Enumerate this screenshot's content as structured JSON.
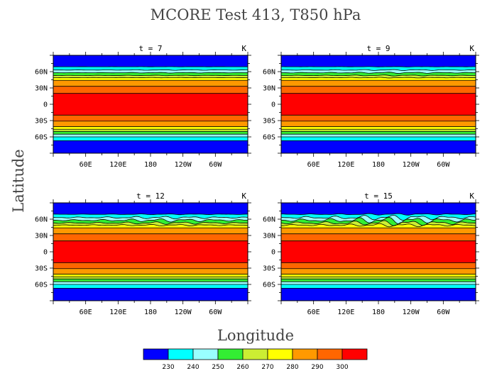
{
  "figure": {
    "title": "MCORE Test 413, T850 hPa",
    "xlabel": "Longitude",
    "ylabel": "Latitude"
  },
  "chart_data": [
    {
      "type": "heatmap",
      "title": "t = 7",
      "units": "K",
      "x_tick_labels": [
        "60E",
        "120E",
        "180",
        "120W",
        "60W"
      ],
      "y_tick_labels": [
        "60N",
        "30N",
        "0",
        "30S",
        "60S"
      ],
      "x_range": [
        0,
        360
      ],
      "y_range": [
        -90,
        90
      ],
      "waviness": 0.1
    },
    {
      "type": "heatmap",
      "title": "t = 9",
      "units": "K",
      "x_tick_labels": [
        "60E",
        "120E",
        "180",
        "120W",
        "60W"
      ],
      "y_tick_labels": [
        "60N",
        "30N",
        "0",
        "30S",
        "60S"
      ],
      "x_range": [
        0,
        360
      ],
      "y_range": [
        -90,
        90
      ],
      "waviness": 0.2
    },
    {
      "type": "heatmap",
      "title": "t = 12",
      "units": "K",
      "x_tick_labels": [
        "60E",
        "120E",
        "180",
        "120W",
        "60W"
      ],
      "y_tick_labels": [
        "60N",
        "30N",
        "0",
        "30S",
        "60S"
      ],
      "x_range": [
        0,
        360
      ],
      "y_range": [
        -90,
        90
      ],
      "waviness": 0.5
    },
    {
      "type": "heatmap",
      "title": "t = 15",
      "units": "K",
      "x_tick_labels": [
        "60E",
        "120E",
        "180",
        "120W",
        "60W"
      ],
      "y_tick_labels": [
        "60N",
        "30N",
        "0",
        "30S",
        "60S"
      ],
      "x_range": [
        0,
        360
      ],
      "y_range": [
        -90,
        90
      ],
      "waviness": 1.0
    }
  ],
  "colorbar": {
    "levels": [
      "230",
      "240",
      "250",
      "260",
      "270",
      "280",
      "290",
      "300"
    ],
    "colors": [
      "#0000ff",
      "#00ffff",
      "#99ffff",
      "#33ee33",
      "#ccee33",
      "#ffff00",
      "#ff9900",
      "#ff6600",
      "#ff0000"
    ]
  }
}
